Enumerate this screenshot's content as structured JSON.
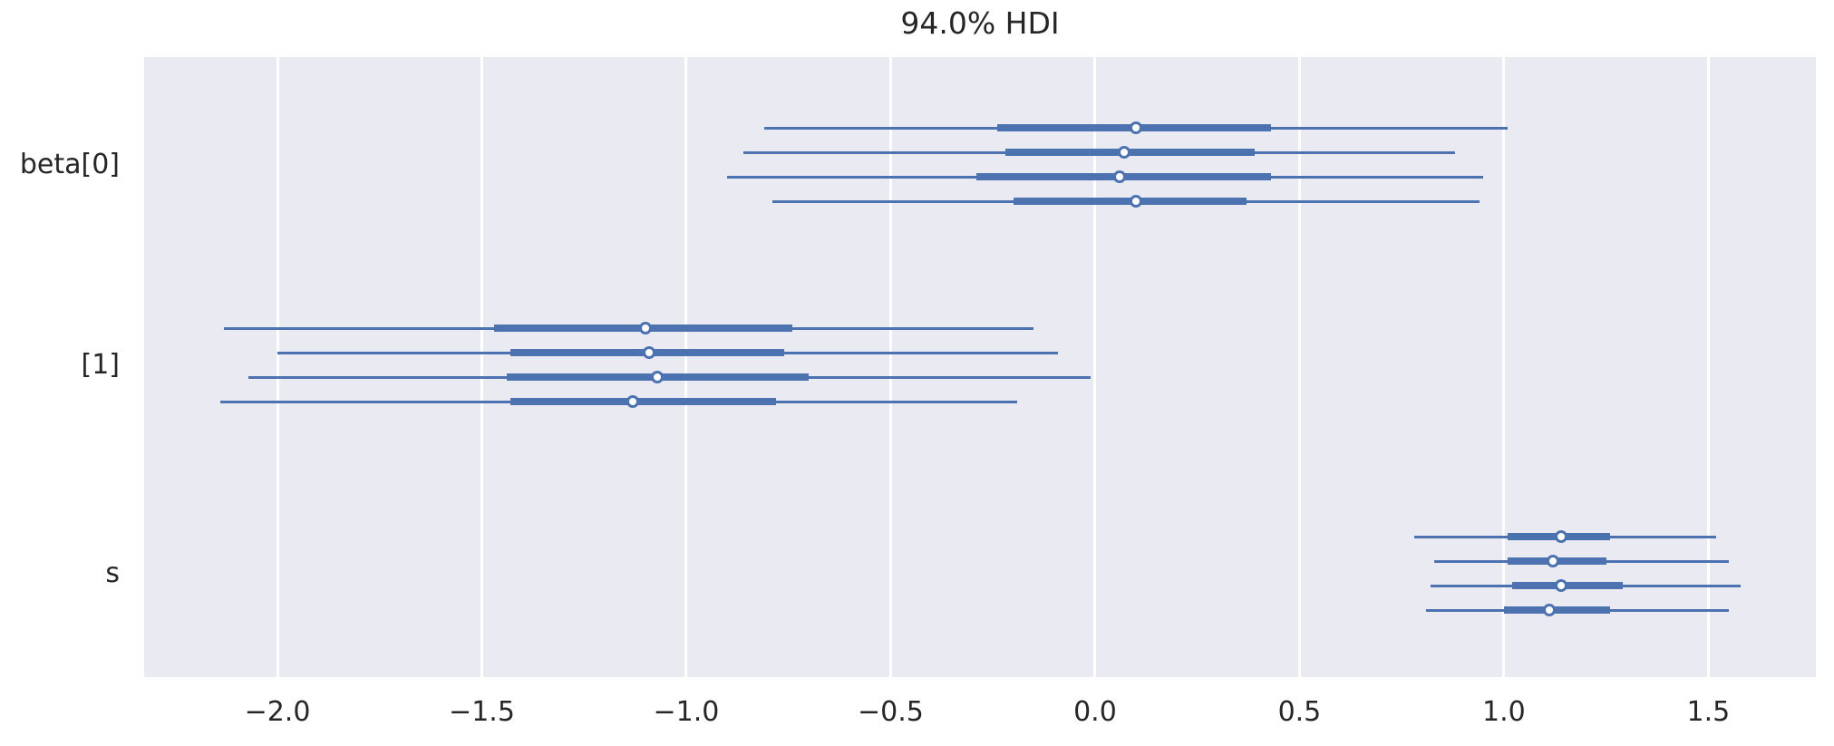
{
  "title": "94.0% HDI",
  "colors": {
    "line": "#4c72b0",
    "plot_background": "#eaeaf2",
    "gridline": "#ffffff",
    "text": "#262626",
    "marker_fill": "#ffffff",
    "figure_background": "#ffffff"
  },
  "chart_data": {
    "type": "forest",
    "title": "94.0% HDI",
    "hdi_prob": "94.0%",
    "xlim": [
      -2.326,
      1.763
    ],
    "x_ticks": [
      -2.0,
      -1.5,
      -1.0,
      -0.5,
      0.0,
      0.5,
      1.0,
      1.5
    ],
    "x_tick_labels": [
      "−2.0",
      "−1.5",
      "−1.0",
      "−0.5",
      "0.0",
      "0.5",
      "1.0",
      "1.5"
    ],
    "grid": true,
    "legend": "none",
    "parameters": [
      {
        "label": "beta[0]",
        "chains": [
          {
            "hdi_low": -0.81,
            "hdi_high": 1.01,
            "quartile_low": -0.24,
            "quartile_high": 0.43,
            "median": 0.1
          },
          {
            "hdi_low": -0.86,
            "hdi_high": 0.88,
            "quartile_low": -0.22,
            "quartile_high": 0.39,
            "median": 0.07
          },
          {
            "hdi_low": -0.9,
            "hdi_high": 0.95,
            "quartile_low": -0.29,
            "quartile_high": 0.43,
            "median": 0.06
          },
          {
            "hdi_low": -0.79,
            "hdi_high": 0.94,
            "quartile_low": -0.2,
            "quartile_high": 0.37,
            "median": 0.1
          }
        ]
      },
      {
        "label": "[1]",
        "chains": [
          {
            "hdi_low": -2.13,
            "hdi_high": -0.15,
            "quartile_low": -1.47,
            "quartile_high": -0.74,
            "median": -1.1
          },
          {
            "hdi_low": -2.0,
            "hdi_high": -0.09,
            "quartile_low": -1.43,
            "quartile_high": -0.76,
            "median": -1.09
          },
          {
            "hdi_low": -2.07,
            "hdi_high": -0.01,
            "quartile_low": -1.44,
            "quartile_high": -0.7,
            "median": -1.07
          },
          {
            "hdi_low": -2.14,
            "hdi_high": -0.19,
            "quartile_low": -1.43,
            "quartile_high": -0.78,
            "median": -1.13
          }
        ]
      },
      {
        "label": "s",
        "chains": [
          {
            "hdi_low": 0.78,
            "hdi_high": 1.52,
            "quartile_low": 1.01,
            "quartile_high": 1.26,
            "median": 1.14
          },
          {
            "hdi_low": 0.83,
            "hdi_high": 1.55,
            "quartile_low": 1.01,
            "quartile_high": 1.25,
            "median": 1.12
          },
          {
            "hdi_low": 0.82,
            "hdi_high": 1.58,
            "quartile_low": 1.02,
            "quartile_high": 1.29,
            "median": 1.14
          },
          {
            "hdi_low": 0.81,
            "hdi_high": 1.55,
            "quartile_low": 1.0,
            "quartile_high": 1.26,
            "median": 1.11
          }
        ]
      }
    ]
  }
}
